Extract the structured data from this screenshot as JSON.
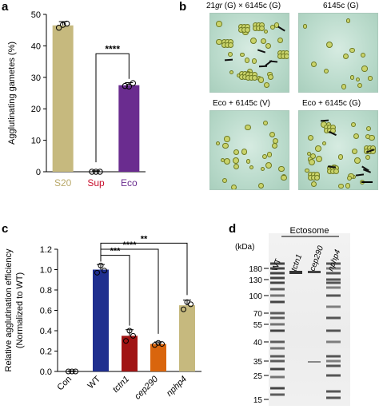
{
  "panels": {
    "a": "a",
    "b": "b",
    "c": "c",
    "d": "d"
  },
  "chart_data": [
    {
      "type": "bar",
      "panel": "a",
      "categories": [
        "S20",
        "Sup",
        "Eco"
      ],
      "values": [
        46.5,
        0,
        27.5
      ],
      "errors": [
        1.2,
        0.3,
        0.8
      ],
      "points": [
        [
          45.5,
          47.2,
          46.8
        ],
        [
          0,
          0,
          0
        ],
        [
          27.0,
          27.6,
          27.9
        ]
      ],
      "colors": [
        "#c6b97e",
        "#c8102e",
        "#6a2c8f"
      ],
      "label_colors": [
        "#b9a96a",
        "#c8102e",
        "#6a2c8f"
      ],
      "ylabel": "Agglutinating gametes (%)",
      "ylim": [
        0,
        50
      ],
      "yticks": [
        0,
        10,
        20,
        30,
        40,
        50
      ],
      "significance": [
        {
          "from": 1,
          "to": 2,
          "label": "****"
        }
      ]
    },
    {
      "type": "bar",
      "panel": "c",
      "categories": [
        "Con",
        "WT",
        "tctn1",
        "cep290",
        "nphp4"
      ],
      "italic": [
        false,
        false,
        true,
        true,
        true
      ],
      "values": [
        0,
        1.0,
        0.35,
        0.27,
        0.65
      ],
      "errors": [
        0.005,
        0.05,
        0.06,
        0.02,
        0.05
      ],
      "points": [
        [
          0,
          0,
          0
        ],
        [
          0.97,
          1.04,
          0.99
        ],
        [
          0.3,
          0.4,
          0.35
        ],
        [
          0.26,
          0.28,
          0.27
        ],
        [
          0.61,
          0.68,
          0.66
        ]
      ],
      "colors": [
        "#888888",
        "#1f2f8f",
        "#a11414",
        "#d9650d",
        "#c6b97e"
      ],
      "ylabel": "Relative agglutination efficiency",
      "ylabel2": "(Normalized to WT)",
      "ylim": [
        0,
        1.2
      ],
      "yticks": [
        "0.0",
        "0.2",
        "0.4",
        "0.6",
        "0.8",
        "1.0",
        "1.2"
      ],
      "significance": [
        {
          "from": 1,
          "to": 2,
          "label": "***"
        },
        {
          "from": 1,
          "to": 3,
          "label": "****"
        },
        {
          "from": 1,
          "to": 4,
          "label": "**"
        }
      ]
    }
  ],
  "micrographs": {
    "top_left_prefix": "21",
    "top_left_italic": "gr",
    "top_left_suffix": " (G) × 6145c (G)",
    "top_right": "6145c (G)",
    "bottom_left": "Eco + 6145c (V)",
    "bottom_right": "Eco + 6145c (G)"
  },
  "gel": {
    "title": "Ectosome",
    "unit": "(kDa)",
    "lanes": [
      "WT",
      "tctn1",
      "cep290",
      "nphp4"
    ],
    "lane_italic": [
      false,
      true,
      true,
      true
    ],
    "markers": [
      "180",
      "130",
      "100",
      "70",
      "55",
      "40",
      "35",
      "25",
      "15"
    ]
  }
}
